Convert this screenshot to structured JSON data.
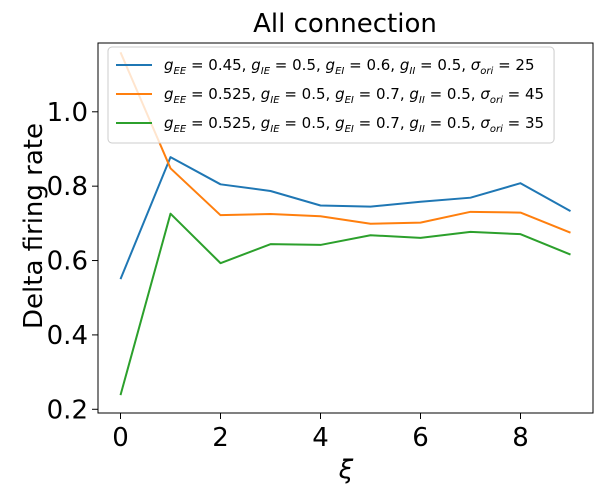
{
  "chart_data": {
    "type": "line",
    "title": "All connection",
    "xlabel": "ξ",
    "ylabel": "Delta firing rate",
    "x": [
      0,
      1,
      2,
      3,
      4,
      5,
      6,
      7,
      8,
      9
    ],
    "xlim": [
      -0.45,
      9.45
    ],
    "ylim": [
      0.19,
      1.185
    ],
    "xticks": [
      0,
      2,
      4,
      6,
      8
    ],
    "yticks": [
      0.2,
      0.4,
      0.6,
      0.8,
      1.0
    ],
    "xtick_labels": [
      "0",
      "2",
      "4",
      "6",
      "8"
    ],
    "ytick_labels": [
      "0.2",
      "0.4",
      "0.6",
      "0.8",
      "1.0"
    ],
    "legend_placement": "top-right",
    "grid": false,
    "series": [
      {
        "color": "#1f77b4",
        "legend": [
          {
            "t": "g",
            "it": true
          },
          {
            "t": "EE",
            "sub": true
          },
          {
            "t": " = 0.45, "
          },
          {
            "t": "g",
            "it": true
          },
          {
            "t": "IE",
            "sub": true
          },
          {
            "t": " = 0.5, "
          },
          {
            "t": "g",
            "it": true
          },
          {
            "t": "EI",
            "sub": true
          },
          {
            "t": " = 0.6, "
          },
          {
            "t": "g",
            "it": true
          },
          {
            "t": "II",
            "sub": true
          },
          {
            "t": " = 0.5, "
          },
          {
            "t": "σ",
            "it": true
          },
          {
            "t": "ori",
            "sub": true
          },
          {
            "t": " = 25"
          }
        ],
        "values": [
          0.55,
          0.878,
          0.805,
          0.787,
          0.748,
          0.745,
          0.758,
          0.769,
          0.808,
          0.733
        ]
      },
      {
        "color": "#ff7f0e",
        "legend": [
          {
            "t": "g",
            "it": true
          },
          {
            "t": "EE",
            "sub": true
          },
          {
            "t": " = 0.525, "
          },
          {
            "t": "g",
            "it": true
          },
          {
            "t": "IE",
            "sub": true
          },
          {
            "t": " = 0.5, "
          },
          {
            "t": "g",
            "it": true
          },
          {
            "t": "EI",
            "sub": true
          },
          {
            "t": " = 0.7, "
          },
          {
            "t": "g",
            "it": true
          },
          {
            "t": "II",
            "sub": true
          },
          {
            "t": " = 0.5, "
          },
          {
            "t": "σ",
            "it": true
          },
          {
            "t": "ori",
            "sub": true
          },
          {
            "t": " = 45"
          }
        ],
        "values": [
          1.16,
          0.848,
          0.722,
          0.725,
          0.719,
          0.699,
          0.702,
          0.731,
          0.729,
          0.675
        ]
      },
      {
        "color": "#2ca02c",
        "legend": [
          {
            "t": "g",
            "it": true
          },
          {
            "t": "EE",
            "sub": true
          },
          {
            "t": " = 0.525, "
          },
          {
            "t": "g",
            "it": true
          },
          {
            "t": "IE",
            "sub": true
          },
          {
            "t": " = 0.5, "
          },
          {
            "t": "g",
            "it": true
          },
          {
            "t": "EI",
            "sub": true
          },
          {
            "t": " = 0.7, "
          },
          {
            "t": "g",
            "it": true
          },
          {
            "t": "II",
            "sub": true
          },
          {
            "t": " = 0.5, "
          },
          {
            "t": "σ",
            "it": true
          },
          {
            "t": "ori",
            "sub": true
          },
          {
            "t": " = 35"
          }
        ],
        "values": [
          0.238,
          0.726,
          0.593,
          0.644,
          0.642,
          0.668,
          0.661,
          0.677,
          0.671,
          0.616
        ]
      }
    ]
  }
}
